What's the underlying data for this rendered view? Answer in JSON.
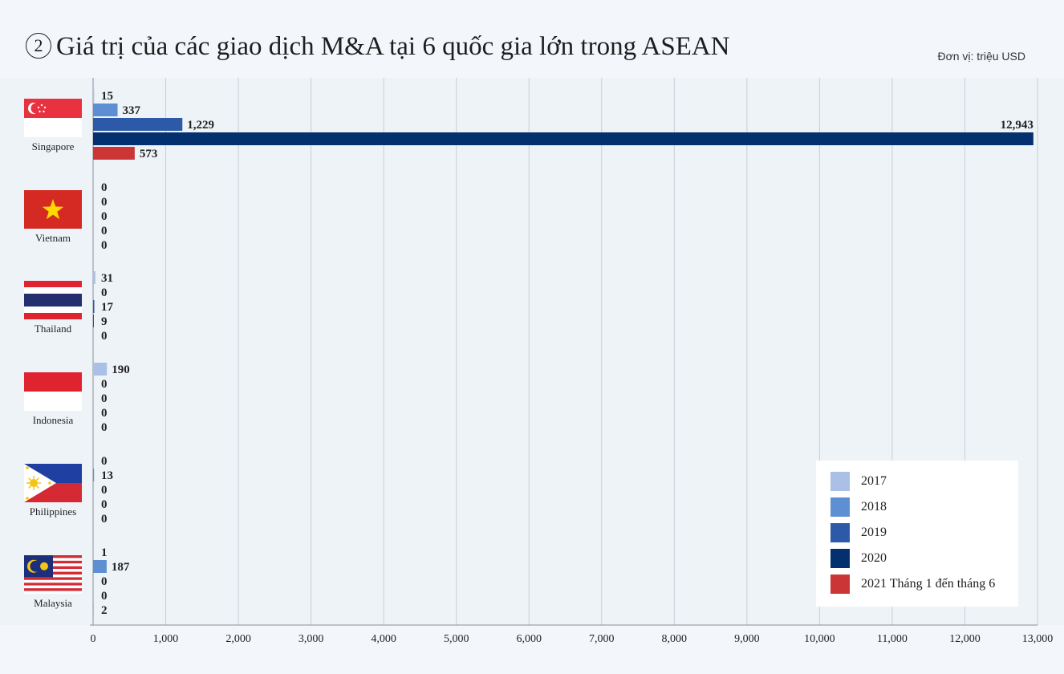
{
  "title": {
    "number": "2",
    "text": "Giá trị của các giao dịch M&A tại 6 quốc gia lớn trong ASEAN"
  },
  "unit_note": "Đơn vị: triệu USD",
  "colors": {
    "background": "#f3f7fb",
    "grid": "#c9ced4",
    "series": [
      "#aac0e6",
      "#5f8fd3",
      "#2d5aa8",
      "#05306f",
      "#cc3535"
    ]
  },
  "countries": [
    {
      "name": "Singapore",
      "flag": "singapore-flag"
    },
    {
      "name": "Vietnam",
      "flag": "vietnam-flag"
    },
    {
      "name": "Thailand",
      "flag": "thailand-flag"
    },
    {
      "name": "Indonesia",
      "flag": "indonesia-flag"
    },
    {
      "name": "Philippines",
      "flag": "philippines-flag"
    },
    {
      "name": "Malaysia",
      "flag": "malaysia-flag"
    }
  ],
  "chart_data": {
    "type": "bar",
    "orientation": "horizontal",
    "categories": [
      "Singapore",
      "Vietnam",
      "Thailand",
      "Indonesia",
      "Philippines",
      "Malaysia"
    ],
    "series": [
      {
        "name": "2017",
        "values": [
          15,
          0,
          31,
          190,
          0,
          1
        ]
      },
      {
        "name": "2018",
        "values": [
          337,
          0,
          0,
          0,
          13,
          187
        ]
      },
      {
        "name": "2019",
        "values": [
          1229,
          0,
          17,
          0,
          0,
          0
        ]
      },
      {
        "name": "2020",
        "values": [
          12943,
          0,
          9,
          0,
          0,
          0
        ]
      },
      {
        "name": "2021 Tháng 1 đến tháng 6",
        "values": [
          573,
          0,
          0,
          0,
          0,
          2
        ]
      }
    ],
    "data_labels": [
      [
        "15",
        "337",
        "1,229",
        "12,943",
        "573"
      ],
      [
        "0",
        "0",
        "0",
        "0",
        "0"
      ],
      [
        "31",
        "0",
        "17",
        "9",
        "0"
      ],
      [
        "190",
        "0",
        "0",
        "0",
        "0"
      ],
      [
        "0",
        "13",
        "0",
        "0",
        "0"
      ],
      [
        "1",
        "187",
        "0",
        "0",
        "2"
      ]
    ],
    "x_ticks": [
      "0",
      "1,000",
      "2,000",
      "3,000",
      "4,000",
      "5,000",
      "6,000",
      "7,000",
      "8,000",
      "9,000",
      "10,000",
      "11,000",
      "12,000",
      "13,000"
    ],
    "xlim": [
      0,
      13000
    ],
    "grid": true,
    "legend_position": "bottom-right"
  }
}
